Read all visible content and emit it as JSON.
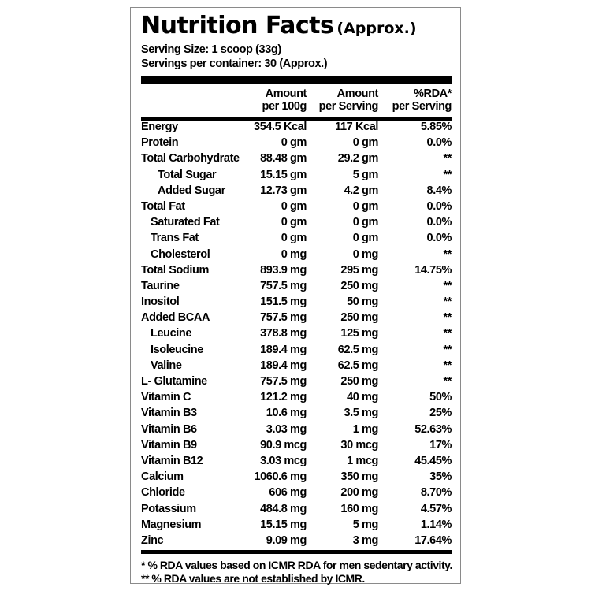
{
  "title": {
    "main": "Nutrition Facts",
    "sub": "(Approx.)"
  },
  "serving_size": "Serving Size: 1 scoop (33g)",
  "servings_per_container": "Servings per container: 30 (Approx.)",
  "headers": {
    "per100g": [
      "Amount",
      "per 100g"
    ],
    "perServing": [
      "Amount",
      "per Serving"
    ],
    "rda": [
      "%RDA*",
      "per Serving"
    ]
  },
  "rows": [
    {
      "name": "Energy",
      "per100g": "354.5 Kcal",
      "perServing": "117 Kcal",
      "rda": "5.85%",
      "indent": 0
    },
    {
      "name": "Protein",
      "per100g": "0 gm",
      "perServing": "0 gm",
      "rda": "0.0%",
      "indent": 0
    },
    {
      "name": "Total Carbohydrate",
      "per100g": "88.48 gm",
      "perServing": "29.2 gm",
      "rda": "**",
      "indent": 0
    },
    {
      "name": "Total Sugar",
      "per100g": "15.15 gm",
      "perServing": "5 gm",
      "rda": "**",
      "indent": 2
    },
    {
      "name": "Added Sugar",
      "per100g": "12.73 gm",
      "perServing": "4.2 gm",
      "rda": "8.4%",
      "indent": 2
    },
    {
      "name": "Total Fat",
      "per100g": "0 gm",
      "perServing": "0 gm",
      "rda": "0.0%",
      "indent": 0
    },
    {
      "name": "Saturated Fat",
      "per100g": "0 gm",
      "perServing": "0 gm",
      "rda": "0.0%",
      "indent": 1
    },
    {
      "name": "Trans Fat",
      "per100g": "0 gm",
      "perServing": "0 gm",
      "rda": "0.0%",
      "indent": 1
    },
    {
      "name": "Cholesterol",
      "per100g": "0 mg",
      "perServing": "0 mg",
      "rda": "**",
      "indent": 1
    },
    {
      "name": "Total Sodium",
      "per100g": "893.9 mg",
      "perServing": "295 mg",
      "rda": "14.75%",
      "indent": 0
    },
    {
      "name": "Taurine",
      "per100g": "757.5 mg",
      "perServing": "250 mg",
      "rda": "**",
      "indent": 0
    },
    {
      "name": "Inositol",
      "per100g": "151.5 mg",
      "perServing": "50 mg",
      "rda": "**",
      "indent": 0
    },
    {
      "name": "Added BCAA",
      "per100g": "757.5 mg",
      "perServing": "250 mg",
      "rda": "**",
      "indent": 0
    },
    {
      "name": "Leucine",
      "per100g": "378.8 mg",
      "perServing": "125 mg",
      "rda": "**",
      "indent": 1
    },
    {
      "name": "Isoleucine",
      "per100g": "189.4 mg",
      "perServing": "62.5 mg",
      "rda": "**",
      "indent": 1
    },
    {
      "name": "Valine",
      "per100g": "189.4 mg",
      "perServing": "62.5 mg",
      "rda": "**",
      "indent": 1
    },
    {
      "name": "L- Glutamine",
      "per100g": "757.5 mg",
      "perServing": "250 mg",
      "rda": "**",
      "indent": 0
    },
    {
      "name": "Vitamin C",
      "per100g": "121.2 mg",
      "perServing": "40 mg",
      "rda": "50%",
      "indent": 0
    },
    {
      "name": "Vitamin B3",
      "per100g": "10.6 mg",
      "perServing": "3.5 mg",
      "rda": "25%",
      "indent": 0
    },
    {
      "name": "Vitamin B6",
      "per100g": "3.03 mg",
      "perServing": "1 mg",
      "rda": "52.63%",
      "indent": 0
    },
    {
      "name": "Vitamin B9",
      "per100g": "90.9 mcg",
      "perServing": "30 mcg",
      "rda": "17%",
      "indent": 0
    },
    {
      "name": "Vitamin B12",
      "per100g": "3.03 mcg",
      "perServing": "1 mcg",
      "rda": "45.45%",
      "indent": 0
    },
    {
      "name": "Calcium",
      "per100g": "1060.6 mg",
      "perServing": "350 mg",
      "rda": "35%",
      "indent": 0
    },
    {
      "name": "Chloride",
      "per100g": "606 mg",
      "perServing": "200 mg",
      "rda": "8.70%",
      "indent": 0
    },
    {
      "name": "Potassium",
      "per100g": "484.8 mg",
      "perServing": "160 mg",
      "rda": "4.57%",
      "indent": 0
    },
    {
      "name": "Magnesium",
      "per100g": "15.15 mg",
      "perServing": "5 mg",
      "rda": "1.14%",
      "indent": 0
    },
    {
      "name": "Zinc",
      "per100g": "9.09 mg",
      "perServing": "3 mg",
      "rda": "17.64%",
      "indent": 0
    }
  ],
  "footnotes": [
    "* % RDA values based on ICMR RDA for men sedentary activity.",
    "** % RDA values are not established by ICMR."
  ]
}
